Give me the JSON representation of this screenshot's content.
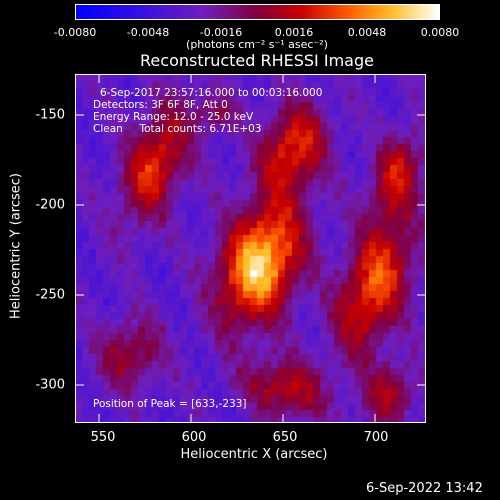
{
  "colorbar": {
    "tick_labels": [
      "-0.0080",
      "-0.0048",
      "-0.0016",
      "0.0016",
      "0.0048",
      "0.0080"
    ],
    "units": "(photons cm⁻² s⁻¹ asec⁻²)",
    "range": [
      -0.008,
      0.008
    ]
  },
  "image": {
    "title": "Reconstructed RHESSI Image",
    "info": {
      "time": "6-Sep-2017 23:57:16.000 to 00:03:16.000",
      "detectors": "Detectors: 3F 6F 8F, Att 0",
      "energy": "Energy Range: 12.0 - 25.0 keV",
      "clean": "Clean     Total counts: 6.71E+03"
    },
    "peak": "Position of Peak = [633,-233]"
  },
  "axes": {
    "xlabel": "Heliocentric X (arcsec)",
    "ylabel": "Heliocentric Y (arcsec)",
    "xticks": [
      "550",
      "600",
      "650",
      "700"
    ],
    "yticks": [
      "-150",
      "-200",
      "-250",
      "-300"
    ],
    "xlim": [
      537,
      728
    ],
    "ylim": [
      -320,
      -127
    ]
  },
  "footer": {
    "timestamp": "6-Sep-2022 13:42"
  }
}
